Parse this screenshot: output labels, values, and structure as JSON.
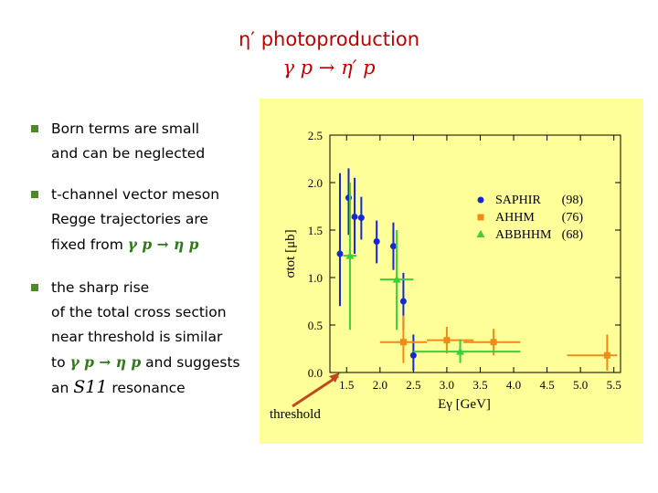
{
  "slide": {
    "title_line1": "η′ photoproduction",
    "title_line2": "γ p → η′ p",
    "bullet1_line1": "Born terms are small",
    "bullet1_line2": "and can be neglected",
    "bullet2_line1": "t-channel vector meson",
    "bullet2_line2": "Regge trajectories are",
    "bullet2_line3_prefix": "fixed from ",
    "bullet2_reaction": "γ p → η p",
    "bullet3_line1": "the sharp rise",
    "bullet3_line2": "of the total cross section",
    "bullet3_line3": "near threshold is similar",
    "bullet3_line4_prefix": "to ",
    "bullet3_reaction": "γ p → η p",
    "bullet3_line4_suffix": " and suggests",
    "bullet3_line5_prefix": "an ",
    "bullet3_resonance": "S11",
    "bullet3_line5_suffix": " resonance",
    "threshold_label": "threshold"
  },
  "colors": {
    "title": "#c00000",
    "panel": "#ffff99",
    "saphir": "#1428d8",
    "ahhm": "#f08a18",
    "abbhhm": "#3ad03a",
    "threshold_arrow": "#c04a20"
  },
  "chart_data": {
    "type": "scatter",
    "xlabel": "Eγ [GeV]",
    "ylabel": "σtot [μb]",
    "xlim": [
      1.25,
      5.6
    ],
    "ylim": [
      0.0,
      2.5
    ],
    "xticks": [
      "1.5",
      "2.0",
      "2.5",
      "3.0",
      "3.5",
      "4.0",
      "4.5",
      "5.0",
      "5.5"
    ],
    "yticks": [
      "0.0",
      "0.5",
      "1.0",
      "1.5",
      "2.0",
      "2.5"
    ],
    "legend_position": "top-right",
    "series": [
      {
        "name": "SAPHIR",
        "year": "(98)",
        "marker": "circle",
        "points": [
          {
            "x": 1.4,
            "y": 1.25,
            "ylo": 0.7,
            "yhi": 2.1
          },
          {
            "x": 1.53,
            "y": 1.84,
            "ylo": 1.45,
            "yhi": 2.15
          },
          {
            "x": 1.62,
            "y": 1.64,
            "ylo": 1.25,
            "yhi": 2.05
          },
          {
            "x": 1.72,
            "y": 1.63,
            "ylo": 1.4,
            "yhi": 1.85
          },
          {
            "x": 1.95,
            "y": 1.38,
            "ylo": 1.15,
            "yhi": 1.6
          },
          {
            "x": 2.2,
            "y": 1.33,
            "ylo": 1.08,
            "yhi": 1.58
          },
          {
            "x": 2.35,
            "y": 0.75,
            "ylo": 0.45,
            "yhi": 1.05
          },
          {
            "x": 2.5,
            "y": 0.18,
            "ylo": 0.02,
            "yhi": 0.4
          }
        ]
      },
      {
        "name": "AHHM",
        "year": "(76)",
        "marker": "square",
        "points": [
          {
            "x": 2.35,
            "y": 0.32,
            "ylo": 0.1,
            "yhi": 0.6,
            "xlo": 2.0,
            "xhi": 2.7
          },
          {
            "x": 3.0,
            "y": 0.34,
            "ylo": 0.2,
            "yhi": 0.48,
            "xlo": 2.7,
            "xhi": 3.4
          },
          {
            "x": 3.7,
            "y": 0.32,
            "ylo": 0.18,
            "yhi": 0.46,
            "xlo": 3.25,
            "xhi": 4.1
          },
          {
            "x": 5.4,
            "y": 0.18,
            "ylo": 0.02,
            "yhi": 0.4,
            "xlo": 4.8,
            "xhi": 5.55
          }
        ]
      },
      {
        "name": "ABBHHM",
        "year": "(68)",
        "marker": "triangle",
        "points": [
          {
            "x": 1.55,
            "y": 1.23,
            "ylo": 0.45,
            "yhi": 2.0,
            "xlo": 1.45,
            "xhi": 1.65
          },
          {
            "x": 2.25,
            "y": 0.98,
            "ylo": 0.45,
            "yhi": 1.5,
            "xlo": 2.0,
            "xhi": 2.5
          },
          {
            "x": 3.2,
            "y": 0.22,
            "ylo": 0.1,
            "yhi": 0.35,
            "xlo": 2.5,
            "xhi": 4.1
          }
        ]
      }
    ]
  }
}
